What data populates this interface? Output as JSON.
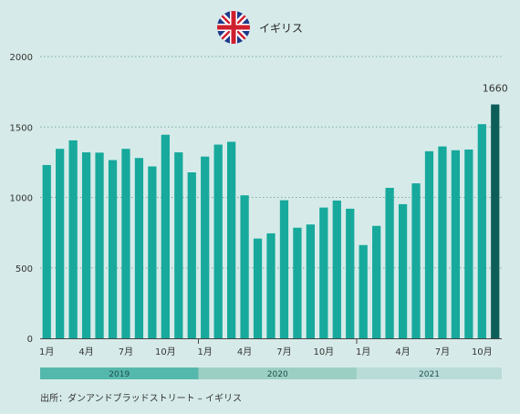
{
  "header": {
    "country": "イギリス",
    "flag_icon": "uk-flag-icon"
  },
  "source": "出所：ダンアンドブラッドストリート – イギリス",
  "colors": {
    "background": "#d6ebe9",
    "bar": "#17a99c",
    "bar_highlight": "#0d5e59",
    "grid": "#7fa9a5",
    "year_bands": [
      "#55b8ad",
      "#9ccfc3",
      "#b9dcd9"
    ]
  },
  "chart_data": {
    "type": "bar",
    "x": [
      "2019-01",
      "2019-02",
      "2019-03",
      "2019-04",
      "2019-05",
      "2019-06",
      "2019-07",
      "2019-08",
      "2019-09",
      "2019-10",
      "2019-11",
      "2019-12",
      "2020-01",
      "2020-02",
      "2020-03",
      "2020-04",
      "2020-05",
      "2020-06",
      "2020-07",
      "2020-08",
      "2020-09",
      "2020-10",
      "2020-11",
      "2020-12",
      "2021-01",
      "2021-02",
      "2021-03",
      "2021-04",
      "2021-05",
      "2021-06",
      "2021-07",
      "2021-08",
      "2021-09",
      "2021-10",
      "2021-11"
    ],
    "values": [
      1230,
      1345,
      1405,
      1320,
      1318,
      1265,
      1345,
      1280,
      1220,
      1445,
      1320,
      1178,
      1290,
      1375,
      1395,
      1015,
      708,
      745,
      980,
      785,
      808,
      928,
      978,
      920,
      662,
      798,
      1068,
      952,
      1100,
      1328,
      1362,
      1335,
      1340,
      1520,
      1660
    ],
    "highlight_index": 34,
    "annotation": "1660",
    "ylim": [
      0,
      2000
    ],
    "yticks": [
      "0",
      "500",
      "1000",
      "1500",
      "2000"
    ],
    "xticks": [
      {
        "index": 0,
        "label": "1月"
      },
      {
        "index": 3,
        "label": "4月"
      },
      {
        "index": 6,
        "label": "7月"
      },
      {
        "index": 9,
        "label": "10月"
      },
      {
        "index": 12,
        "label": "1月"
      },
      {
        "index": 15,
        "label": "4月"
      },
      {
        "index": 18,
        "label": "7月"
      },
      {
        "index": 21,
        "label": "10月"
      },
      {
        "index": 24,
        "label": "1月"
      },
      {
        "index": 27,
        "label": "4月"
      },
      {
        "index": 30,
        "label": "7月"
      },
      {
        "index": 33,
        "label": "10月"
      }
    ],
    "years": [
      {
        "label": "2019",
        "start": 0,
        "end": 11
      },
      {
        "label": "2020",
        "start": 12,
        "end": 23
      },
      {
        "label": "2021",
        "start": 24,
        "end": 34
      }
    ],
    "grid": true
  }
}
